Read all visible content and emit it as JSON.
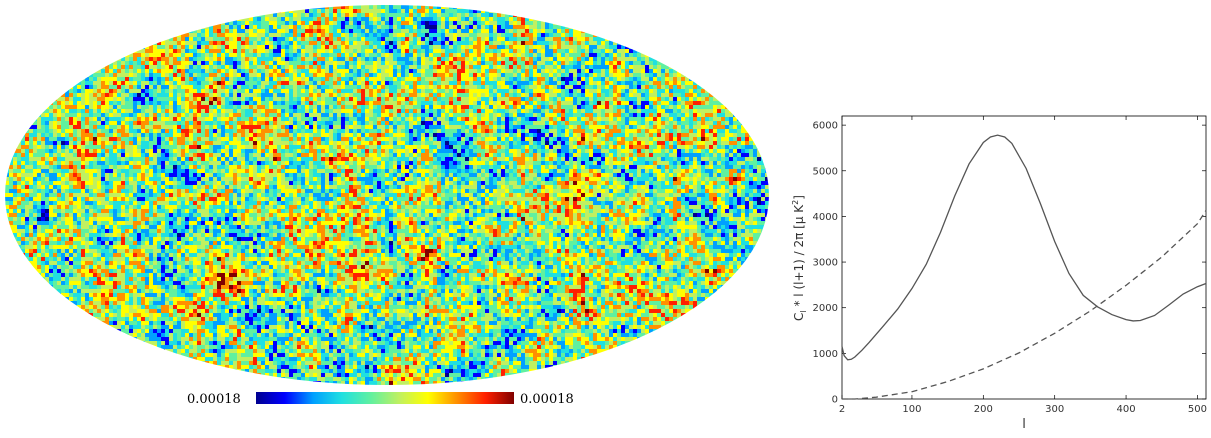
{
  "chart_data": [
    {
      "type": "heatmap",
      "projection": "mollweide",
      "colormap": "jet",
      "colorbar": {
        "min_label": "0.00018",
        "max_label": "0.00018",
        "placement": "bottom"
      },
      "colors": [
        "#00008f",
        "#0000ff",
        "#00a0ff",
        "#20e0e0",
        "#60f0a0",
        "#c0f060",
        "#ffff00",
        "#ff9000",
        "#ff2000",
        "#800000"
      ]
    },
    {
      "type": "line",
      "xlabel": "l",
      "ylabel": "C_l * l (l+1) / 2π [μ K²]",
      "ylabel_parts": {
        "c": "C",
        "sub": "l",
        "mid": " * l (l+1) / 2π [μ K",
        "sup": "2",
        "end": "]"
      },
      "xlim": [
        2,
        512
      ],
      "ylim": [
        0,
        6200
      ],
      "xticks": [
        2,
        100,
        200,
        300,
        400,
        500
      ],
      "xtick_labels": [
        "2",
        "100",
        "200",
        "300",
        "400",
        "500"
      ],
      "yticks": [
        0,
        1000,
        2000,
        3000,
        4000,
        5000,
        6000
      ],
      "ytick_labels": [
        "0",
        "1000",
        "2000",
        "3000",
        "4000",
        "5000",
        "6000"
      ],
      "grid": false,
      "legend": "none",
      "series": [
        {
          "style": "solid",
          "color": "#555555",
          "x": [
            2,
            5,
            10,
            15,
            20,
            30,
            40,
            60,
            80,
            100,
            120,
            140,
            160,
            180,
            200,
            210,
            220,
            230,
            240,
            260,
            280,
            300,
            320,
            340,
            360,
            380,
            400,
            410,
            420,
            440,
            460,
            480,
            500,
            512
          ],
          "y": [
            1150,
            950,
            860,
            870,
            920,
            1070,
            1240,
            1600,
            1970,
            2420,
            2950,
            3650,
            4450,
            5150,
            5620,
            5740,
            5780,
            5740,
            5600,
            5050,
            4280,
            3450,
            2750,
            2270,
            2020,
            1850,
            1740,
            1710,
            1720,
            1830,
            2060,
            2300,
            2460,
            2530
          ]
        },
        {
          "style": "dashed",
          "color": "#555555",
          "x": [
            2,
            20,
            50,
            100,
            150,
            200,
            250,
            300,
            350,
            400,
            450,
            500,
            512
          ],
          "y": [
            0,
            0,
            40,
            160,
            380,
            660,
            1010,
            1440,
            1930,
            2490,
            3110,
            3840,
            4130
          ]
        }
      ]
    }
  ]
}
